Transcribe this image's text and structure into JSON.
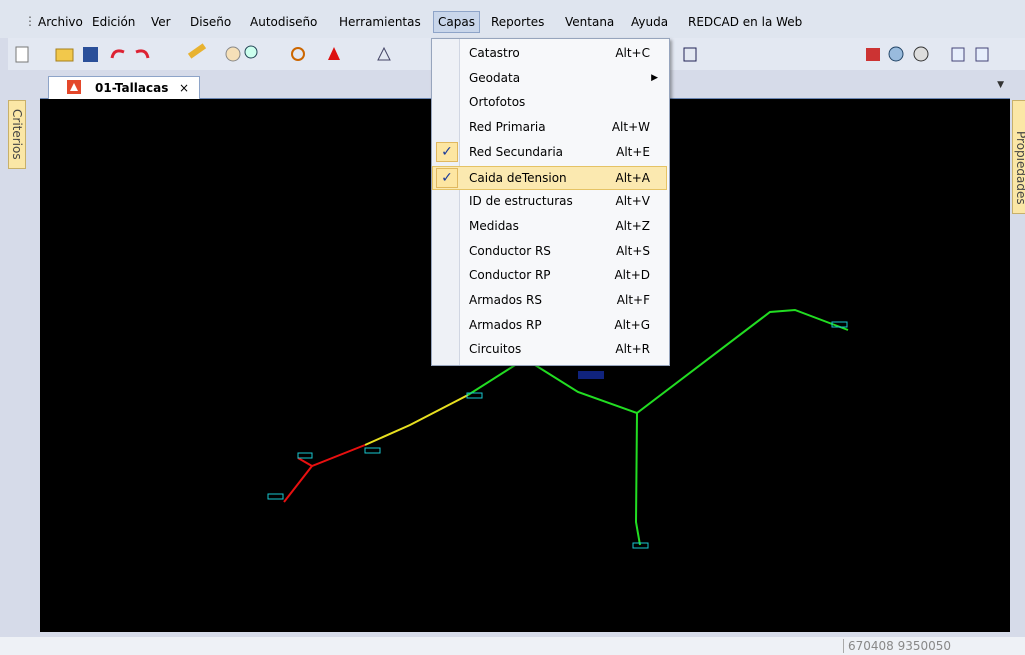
{
  "menu_bar": [
    {
      "label": "Archivo",
      "active": false
    },
    {
      "label": "Edición",
      "active": false
    },
    {
      "label": "Ver",
      "active": false
    },
    {
      "label": "Diseño",
      "active": false
    },
    {
      "label": "Autodiseño",
      "active": false
    },
    {
      "label": "Herramientas",
      "active": false
    },
    {
      "label": "Capas",
      "active": true
    },
    {
      "label": "Reportes",
      "active": false
    },
    {
      "label": "Ventana",
      "active": false
    },
    {
      "label": "Ayuda",
      "active": false
    },
    {
      "label": "REDCAD en la Web",
      "active": false
    }
  ],
  "tab": {
    "title": "01-Tallacas",
    "close": "×"
  },
  "left_panel": "Criterios",
  "right_panel": "Propiedades",
  "dropdown": [
    {
      "label": "Catastro",
      "shortcut": "Alt+C",
      "checked": false,
      "submenu": false,
      "highlighted": false
    },
    {
      "label": "Geodata",
      "checked": false,
      "submenu": true,
      "highlighted": false
    },
    {
      "label": "Ortofotos",
      "checked": false,
      "submenu": false,
      "highlighted": false
    },
    {
      "label": "Red Primaria",
      "shortcut": "Alt+W",
      "checked": false,
      "submenu": false,
      "highlighted": false
    },
    {
      "label": "Red Secundaria",
      "shortcut": "Alt+E",
      "checked": true,
      "submenu": false,
      "highlighted": false
    },
    {
      "label": "Caida deTension",
      "shortcut": "Alt+A",
      "checked": true,
      "submenu": false,
      "highlighted": true
    },
    {
      "label": "ID de estructuras",
      "shortcut": "Alt+V",
      "checked": false,
      "submenu": false,
      "highlighted": false
    },
    {
      "label": "Medidas",
      "shortcut": "Alt+Z",
      "checked": false,
      "submenu": false,
      "highlighted": false
    },
    {
      "label": "Conductor RS",
      "shortcut": "Alt+S",
      "checked": false,
      "submenu": false,
      "highlighted": false
    },
    {
      "label": "Conductor RP",
      "shortcut": "Alt+D",
      "checked": false,
      "submenu": false,
      "highlighted": false
    },
    {
      "label": "Armados RS",
      "shortcut": "Alt+F",
      "checked": false,
      "submenu": false,
      "highlighted": false
    },
    {
      "label": "Armados RP",
      "shortcut": "Alt+G",
      "checked": false,
      "submenu": false,
      "highlighted": false
    },
    {
      "label": "Circuitos",
      "shortcut": "Alt+R",
      "checked": false,
      "submenu": false,
      "highlighted": false
    }
  ],
  "status_bar": {
    "coordinates": "670408 9350050"
  }
}
